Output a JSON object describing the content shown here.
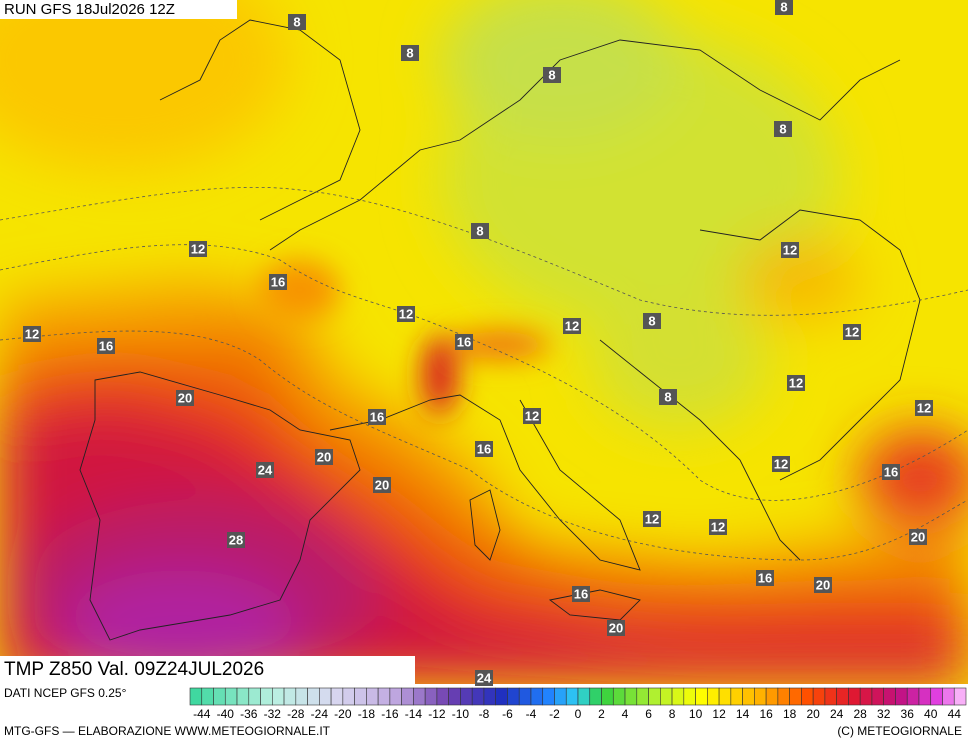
{
  "header": "RUN GFS 18Jul2026 12Z",
  "map": {
    "contour_labels": [
      8,
      8,
      8,
      8,
      8,
      8,
      8,
      8,
      12,
      12,
      12,
      12,
      12,
      12,
      12,
      12,
      12,
      12,
      12,
      12,
      16,
      16,
      16,
      16,
      16,
      16,
      16,
      16,
      20,
      20,
      20,
      20,
      20,
      20,
      24,
      24,
      28
    ]
  },
  "footer": {
    "title": "TMP Z850 Val. 09Z24JUL2026",
    "source": "DATI NCEP GFS 0.25°",
    "credit": "MTG-GFS — ELABORAZIONE WWW.METEOGIORNALE.IT",
    "copyright": "(C) METEOGIORNALE"
  },
  "colorbar": {
    "labels": [
      -44,
      -40,
      -36,
      -32,
      -28,
      -24,
      -20,
      -18,
      -16,
      -14,
      -12,
      -10,
      -8,
      -6,
      -4,
      -2,
      0,
      2,
      4,
      6,
      8,
      10,
      12,
      14,
      16,
      18,
      20,
      24,
      28,
      32,
      36,
      40,
      44
    ]
  }
}
